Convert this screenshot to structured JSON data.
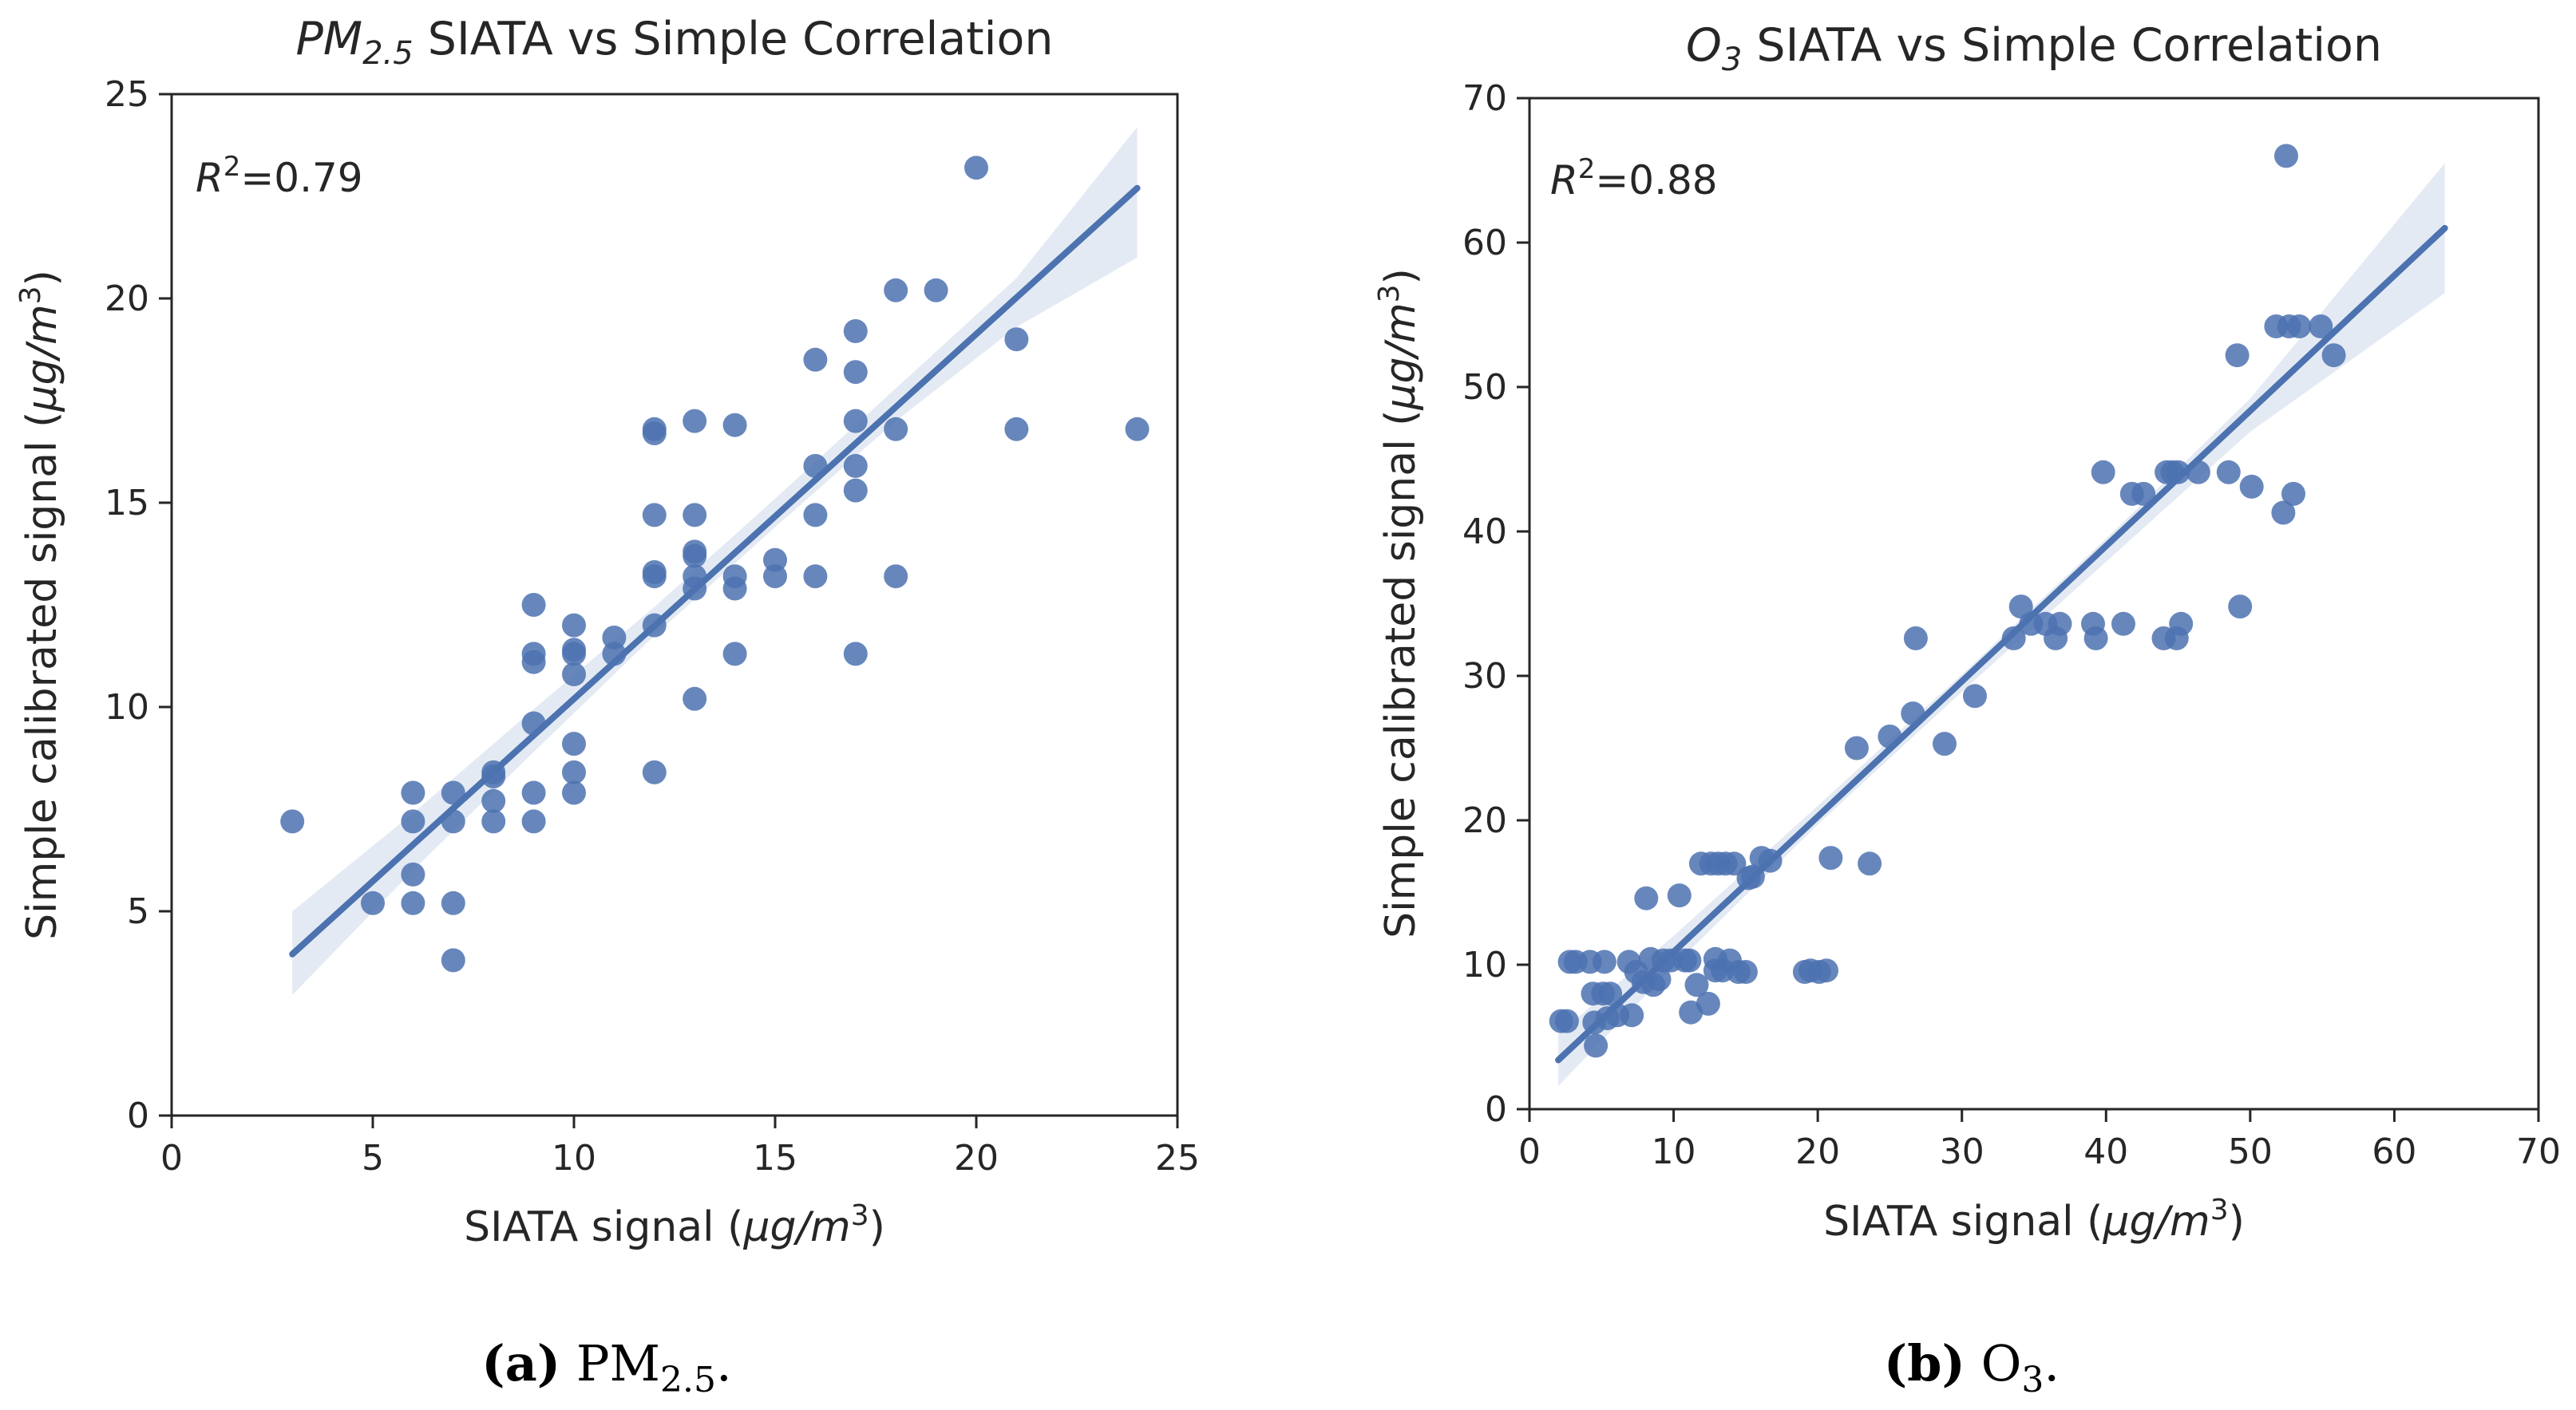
{
  "colors": {
    "point": "#4c72b0",
    "line": "#4c72b0",
    "band": "#4c72b0",
    "axis": "#262626"
  },
  "chart_data": [
    {
      "type": "scatter",
      "id": "pm25",
      "title": {
        "var": "PM",
        "sub": "2.5",
        "rest": " SIATA vs Simple Correlation"
      },
      "xlabel": {
        "pre": "SIATA signal (",
        "unit": "μg/m",
        "sup": "3",
        "post": ")"
      },
      "ylabel": {
        "pre": "Simple calibrated signal (",
        "unit": "μg/m",
        "sup": "3",
        "post": ")"
      },
      "annotation": {
        "pre": "R",
        "sup": "2",
        "post": "=0.79"
      },
      "caption": {
        "label": "(a)",
        "text": " PM",
        "sub": "2.5",
        "end": "."
      },
      "xlim": [
        0,
        25
      ],
      "ylim": [
        0,
        25
      ],
      "xticks": [
        0,
        5,
        10,
        15,
        20,
        25
      ],
      "yticks": [
        0,
        5,
        10,
        15,
        20,
        25
      ],
      "regression": {
        "x0": 3,
        "y0": 3.95,
        "x1": 24,
        "y1": 22.7
      },
      "ci_band": {
        "x": [
          3,
          6,
          9,
          12,
          15,
          18,
          21,
          24
        ],
        "lower": [
          2.95,
          6.0,
          8.9,
          11.75,
          14.4,
          17.0,
          19.3,
          21.0
        ],
        "upper": [
          5.0,
          7.4,
          9.95,
          12.45,
          15.1,
          17.8,
          20.5,
          24.2
        ]
      },
      "points": [
        [
          3,
          7.2
        ],
        [
          5,
          5.2
        ],
        [
          6,
          7.9
        ],
        [
          6,
          7.2
        ],
        [
          6,
          5.9
        ],
        [
          6,
          5.2
        ],
        [
          7,
          7.9
        ],
        [
          7,
          7.2
        ],
        [
          7,
          5.2
        ],
        [
          7,
          3.8
        ],
        [
          8,
          8.4
        ],
        [
          8,
          8.3
        ],
        [
          8,
          7.7
        ],
        [
          8,
          7.2
        ],
        [
          9,
          12.5
        ],
        [
          9,
          11.3
        ],
        [
          9,
          11.1
        ],
        [
          9,
          9.6
        ],
        [
          9,
          7.9
        ],
        [
          9,
          7.2
        ],
        [
          10,
          12.0
        ],
        [
          10,
          11.4
        ],
        [
          10,
          11.3
        ],
        [
          10,
          10.8
        ],
        [
          10,
          9.1
        ],
        [
          10,
          8.4
        ],
        [
          10,
          7.9
        ],
        [
          11,
          11.7
        ],
        [
          11,
          11.3
        ],
        [
          12,
          16.8
        ],
        [
          12,
          16.7
        ],
        [
          12,
          14.7
        ],
        [
          12,
          13.3
        ],
        [
          12,
          13.2
        ],
        [
          12,
          12.0
        ],
        [
          12,
          8.4
        ],
        [
          13,
          17.0
        ],
        [
          13,
          14.7
        ],
        [
          13,
          13.8
        ],
        [
          13,
          13.7
        ],
        [
          13,
          13.2
        ],
        [
          13,
          12.9
        ],
        [
          13,
          10.2
        ],
        [
          14,
          16.9
        ],
        [
          14,
          13.2
        ],
        [
          14,
          12.9
        ],
        [
          14,
          11.3
        ],
        [
          15,
          13.6
        ],
        [
          15,
          13.2
        ],
        [
          16,
          18.5
        ],
        [
          16,
          15.9
        ],
        [
          16,
          14.7
        ],
        [
          16,
          13.2
        ],
        [
          17,
          19.2
        ],
        [
          17,
          18.2
        ],
        [
          17,
          17.0
        ],
        [
          17,
          15.9
        ],
        [
          17,
          15.3
        ],
        [
          17,
          11.3
        ],
        [
          18,
          20.2
        ],
        [
          18,
          16.8
        ],
        [
          18,
          13.2
        ],
        [
          19,
          20.2
        ],
        [
          20,
          23.2
        ],
        [
          21,
          19.0
        ],
        [
          21,
          16.8
        ],
        [
          24,
          16.8
        ]
      ]
    },
    {
      "type": "scatter",
      "id": "o3",
      "title": {
        "var": "O",
        "sub": "3",
        "rest": " SIATA vs Simple Correlation"
      },
      "xlabel": {
        "pre": "SIATA signal (",
        "unit": "μg/m",
        "sup": "3",
        "post": ")"
      },
      "ylabel": {
        "pre": "Simple calibrated signal (",
        "unit": "μg/m",
        "sup": "3",
        "post": ")"
      },
      "annotation": {
        "pre": "R",
        "sup": "2",
        "post": "=0.88"
      },
      "caption": {
        "label": "(b)",
        "text": " O",
        "sub": "3",
        "end": "."
      },
      "xlim": [
        0,
        70
      ],
      "ylim": [
        0,
        70
      ],
      "xticks": [
        0,
        10,
        20,
        30,
        40,
        50,
        60,
        70
      ],
      "yticks": [
        0,
        10,
        20,
        30,
        40,
        50,
        60,
        70
      ],
      "regression": {
        "x0": 2,
        "y0": 3.4,
        "x1": 63.5,
        "y1": 61.0
      },
      "ci_band": {
        "x": [
          2,
          10,
          20,
          30,
          40,
          50,
          63.5
        ],
        "lower": [
          1.6,
          9.9,
          19.7,
          28.9,
          37.9,
          46.9,
          56.5
        ],
        "upper": [
          5.2,
          12.0,
          21.0,
          30.1,
          39.5,
          49.2,
          65.5
        ]
      },
      "points": [
        [
          2.2,
          6.1
        ],
        [
          2.6,
          6.1
        ],
        [
          2.8,
          10.2
        ],
        [
          3.2,
          10.2
        ],
        [
          4.2,
          10.2
        ],
        [
          4.4,
          8.0
        ],
        [
          4.5,
          6.0
        ],
        [
          4.6,
          4.4
        ],
        [
          5.1,
          8.0
        ],
        [
          5.2,
          10.2
        ],
        [
          5.4,
          6.3
        ],
        [
          5.6,
          8.0
        ],
        [
          6.1,
          6.5
        ],
        [
          6.9,
          10.2
        ],
        [
          7.1,
          6.5
        ],
        [
          7.4,
          9.5
        ],
        [
          7.9,
          8.8
        ],
        [
          8.1,
          14.6
        ],
        [
          8.4,
          10.4
        ],
        [
          8.6,
          8.6
        ],
        [
          9.0,
          9.0
        ],
        [
          9.3,
          10.3
        ],
        [
          9.8,
          10.3
        ],
        [
          10.4,
          14.8
        ],
        [
          10.8,
          10.3
        ],
        [
          11.1,
          10.3
        ],
        [
          11.2,
          6.7
        ],
        [
          11.6,
          8.6
        ],
        [
          11.9,
          17.0
        ],
        [
          12.4,
          7.3
        ],
        [
          12.6,
          17.0
        ],
        [
          12.9,
          9.6
        ],
        [
          12.9,
          10.4
        ],
        [
          13.1,
          17.0
        ],
        [
          13.4,
          9.6
        ],
        [
          13.6,
          17.0
        ],
        [
          13.9,
          10.3
        ],
        [
          14.2,
          17.0
        ],
        [
          14.5,
          9.5
        ],
        [
          15.0,
          9.5
        ],
        [
          15.2,
          16.0
        ],
        [
          15.5,
          16.1
        ],
        [
          16.1,
          17.4
        ],
        [
          16.7,
          17.2
        ],
        [
          19.1,
          9.5
        ],
        [
          19.5,
          9.6
        ],
        [
          20.1,
          9.5
        ],
        [
          20.6,
          9.6
        ],
        [
          20.9,
          17.4
        ],
        [
          22.7,
          25.0
        ],
        [
          23.6,
          17.0
        ],
        [
          25.0,
          25.8
        ],
        [
          26.6,
          27.4
        ],
        [
          26.8,
          32.6
        ],
        [
          28.8,
          25.3
        ],
        [
          30.9,
          28.6
        ],
        [
          33.6,
          32.6
        ],
        [
          34.1,
          34.8
        ],
        [
          34.8,
          33.6
        ],
        [
          35.8,
          33.6
        ],
        [
          36.5,
          32.6
        ],
        [
          36.8,
          33.6
        ],
        [
          39.1,
          33.6
        ],
        [
          39.3,
          32.6
        ],
        [
          39.8,
          44.1
        ],
        [
          41.2,
          33.6
        ],
        [
          41.8,
          42.6
        ],
        [
          42.6,
          42.6
        ],
        [
          44.0,
          32.6
        ],
        [
          44.2,
          44.1
        ],
        [
          44.6,
          44.1
        ],
        [
          44.9,
          32.6
        ],
        [
          45.0,
          44.1
        ],
        [
          45.2,
          33.6
        ],
        [
          46.4,
          44.1
        ],
        [
          48.5,
          44.1
        ],
        [
          49.1,
          52.2
        ],
        [
          49.3,
          34.8
        ],
        [
          50.1,
          43.1
        ],
        [
          51.8,
          54.2
        ],
        [
          52.3,
          41.3
        ],
        [
          52.5,
          66.0
        ],
        [
          52.7,
          54.2
        ],
        [
          53.0,
          42.6
        ],
        [
          53.4,
          54.2
        ],
        [
          54.9,
          54.2
        ],
        [
          55.8,
          52.2
        ]
      ]
    }
  ]
}
